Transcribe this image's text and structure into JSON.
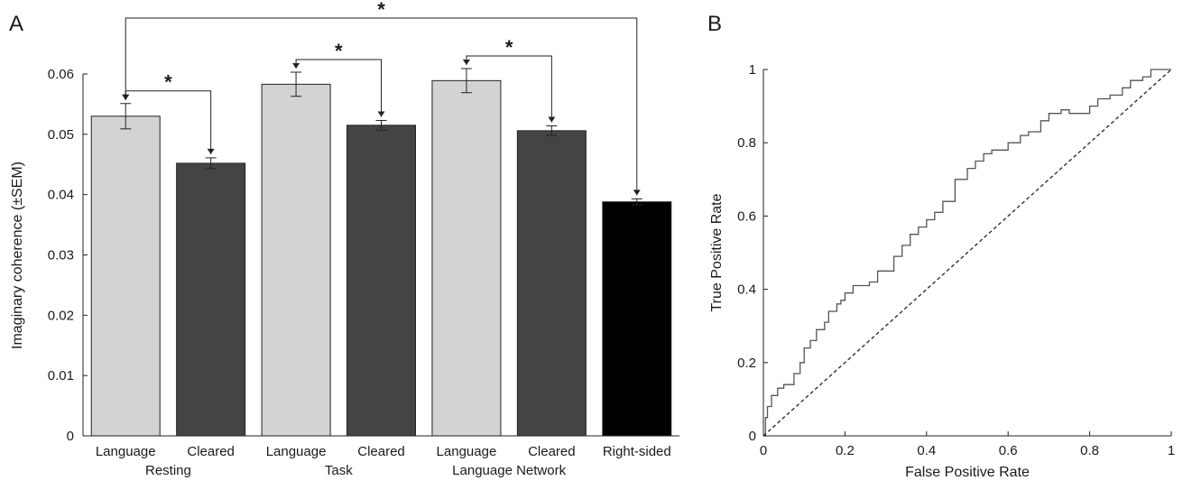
{
  "chart_data": [
    {
      "panel": "A",
      "type": "bar",
      "ylabel": "Imaginary coherence (±SEM)",
      "ylim": [
        0,
        0.06
      ],
      "yticks": [
        0,
        0.01,
        0.02,
        0.03,
        0.04,
        0.05,
        0.06
      ],
      "ytick_labels": [
        "0",
        "0.01",
        "0.02",
        "0.03",
        "0.04",
        "0.05",
        "0.06"
      ],
      "categories": [
        "Language",
        "Cleared",
        "Language",
        "Cleared",
        "Language",
        "Cleared",
        "Right-sided"
      ],
      "groups": [
        "Resting",
        "Task",
        "Language Network"
      ],
      "values": [
        0.053,
        0.0452,
        0.0583,
        0.0515,
        0.0589,
        0.0506,
        0.0388
      ],
      "sem": [
        0.0021,
        0.0009,
        0.002,
        0.0008,
        0.002,
        0.0008,
        0.0005
      ],
      "bar_colors": [
        "#d3d3d3",
        "#444444",
        "#d3d3d3",
        "#444444",
        "#d3d3d3",
        "#444444",
        "#000000"
      ],
      "significance": [
        {
          "from": 0,
          "to": 1,
          "label": "*"
        },
        {
          "from": 2,
          "to": 3,
          "label": "*"
        },
        {
          "from": 4,
          "to": 5,
          "label": "*"
        },
        {
          "from": 0,
          "to": 6,
          "label": "*"
        }
      ]
    },
    {
      "panel": "B",
      "type": "line",
      "xlabel": "False Positive Rate",
      "ylabel": "True Positive Rate",
      "xlim": [
        0,
        1
      ],
      "ylim": [
        0,
        1
      ],
      "xticks": [
        0,
        0.2,
        0.4,
        0.6,
        0.8,
        1
      ],
      "xtick_labels": [
        "0",
        "0.2",
        "0.4",
        "0.6",
        "0.8",
        "1"
      ],
      "yticks": [
        0,
        0.2,
        0.4,
        0.6,
        0.8,
        1
      ],
      "ytick_labels": [
        "0",
        "0.2",
        "0.4",
        "0.6",
        "0.8",
        "1"
      ],
      "series": [
        {
          "style": "solid",
          "x": [
            0,
            0.005,
            0.005,
            0.01,
            0.01,
            0.02,
            0.02,
            0.035,
            0.035,
            0.05,
            0.05,
            0.075,
            0.075,
            0.09,
            0.09,
            0.1,
            0.1,
            0.115,
            0.115,
            0.13,
            0.13,
            0.15,
            0.15,
            0.16,
            0.16,
            0.18,
            0.18,
            0.19,
            0.19,
            0.2,
            0.2,
            0.22,
            0.22,
            0.26,
            0.26,
            0.28,
            0.28,
            0.32,
            0.32,
            0.34,
            0.34,
            0.36,
            0.36,
            0.38,
            0.38,
            0.4,
            0.4,
            0.42,
            0.42,
            0.44,
            0.44,
            0.47,
            0.47,
            0.5,
            0.5,
            0.52,
            0.52,
            0.54,
            0.54,
            0.56,
            0.56,
            0.6,
            0.6,
            0.63,
            0.63,
            0.65,
            0.65,
            0.68,
            0.68,
            0.7,
            0.7,
            0.73,
            0.73,
            0.75,
            0.75,
            0.8,
            0.8,
            0.82,
            0.82,
            0.85,
            0.85,
            0.88,
            0.88,
            0.9,
            0.9,
            0.93,
            0.93,
            0.95,
            0.95,
            0.97,
            0.97,
            1
          ],
          "y": [
            0,
            0,
            0.05,
            0.05,
            0.08,
            0.08,
            0.11,
            0.11,
            0.13,
            0.13,
            0.14,
            0.14,
            0.17,
            0.17,
            0.2,
            0.2,
            0.24,
            0.24,
            0.26,
            0.26,
            0.29,
            0.29,
            0.31,
            0.31,
            0.34,
            0.34,
            0.36,
            0.36,
            0.37,
            0.37,
            0.39,
            0.39,
            0.41,
            0.41,
            0.42,
            0.42,
            0.45,
            0.45,
            0.49,
            0.49,
            0.52,
            0.52,
            0.55,
            0.55,
            0.57,
            0.57,
            0.59,
            0.59,
            0.61,
            0.61,
            0.64,
            0.64,
            0.7,
            0.7,
            0.73,
            0.73,
            0.75,
            0.75,
            0.77,
            0.77,
            0.78,
            0.78,
            0.8,
            0.8,
            0.82,
            0.82,
            0.83,
            0.83,
            0.86,
            0.86,
            0.88,
            0.88,
            0.89,
            0.89,
            0.88,
            0.88,
            0.9,
            0.9,
            0.92,
            0.92,
            0.93,
            0.93,
            0.95,
            0.95,
            0.97,
            0.97,
            0.98,
            0.98,
            1,
            1,
            1,
            1
          ]
        },
        {
          "style": "dashed",
          "x": [
            0,
            1
          ],
          "y": [
            0,
            1
          ]
        }
      ]
    }
  ]
}
